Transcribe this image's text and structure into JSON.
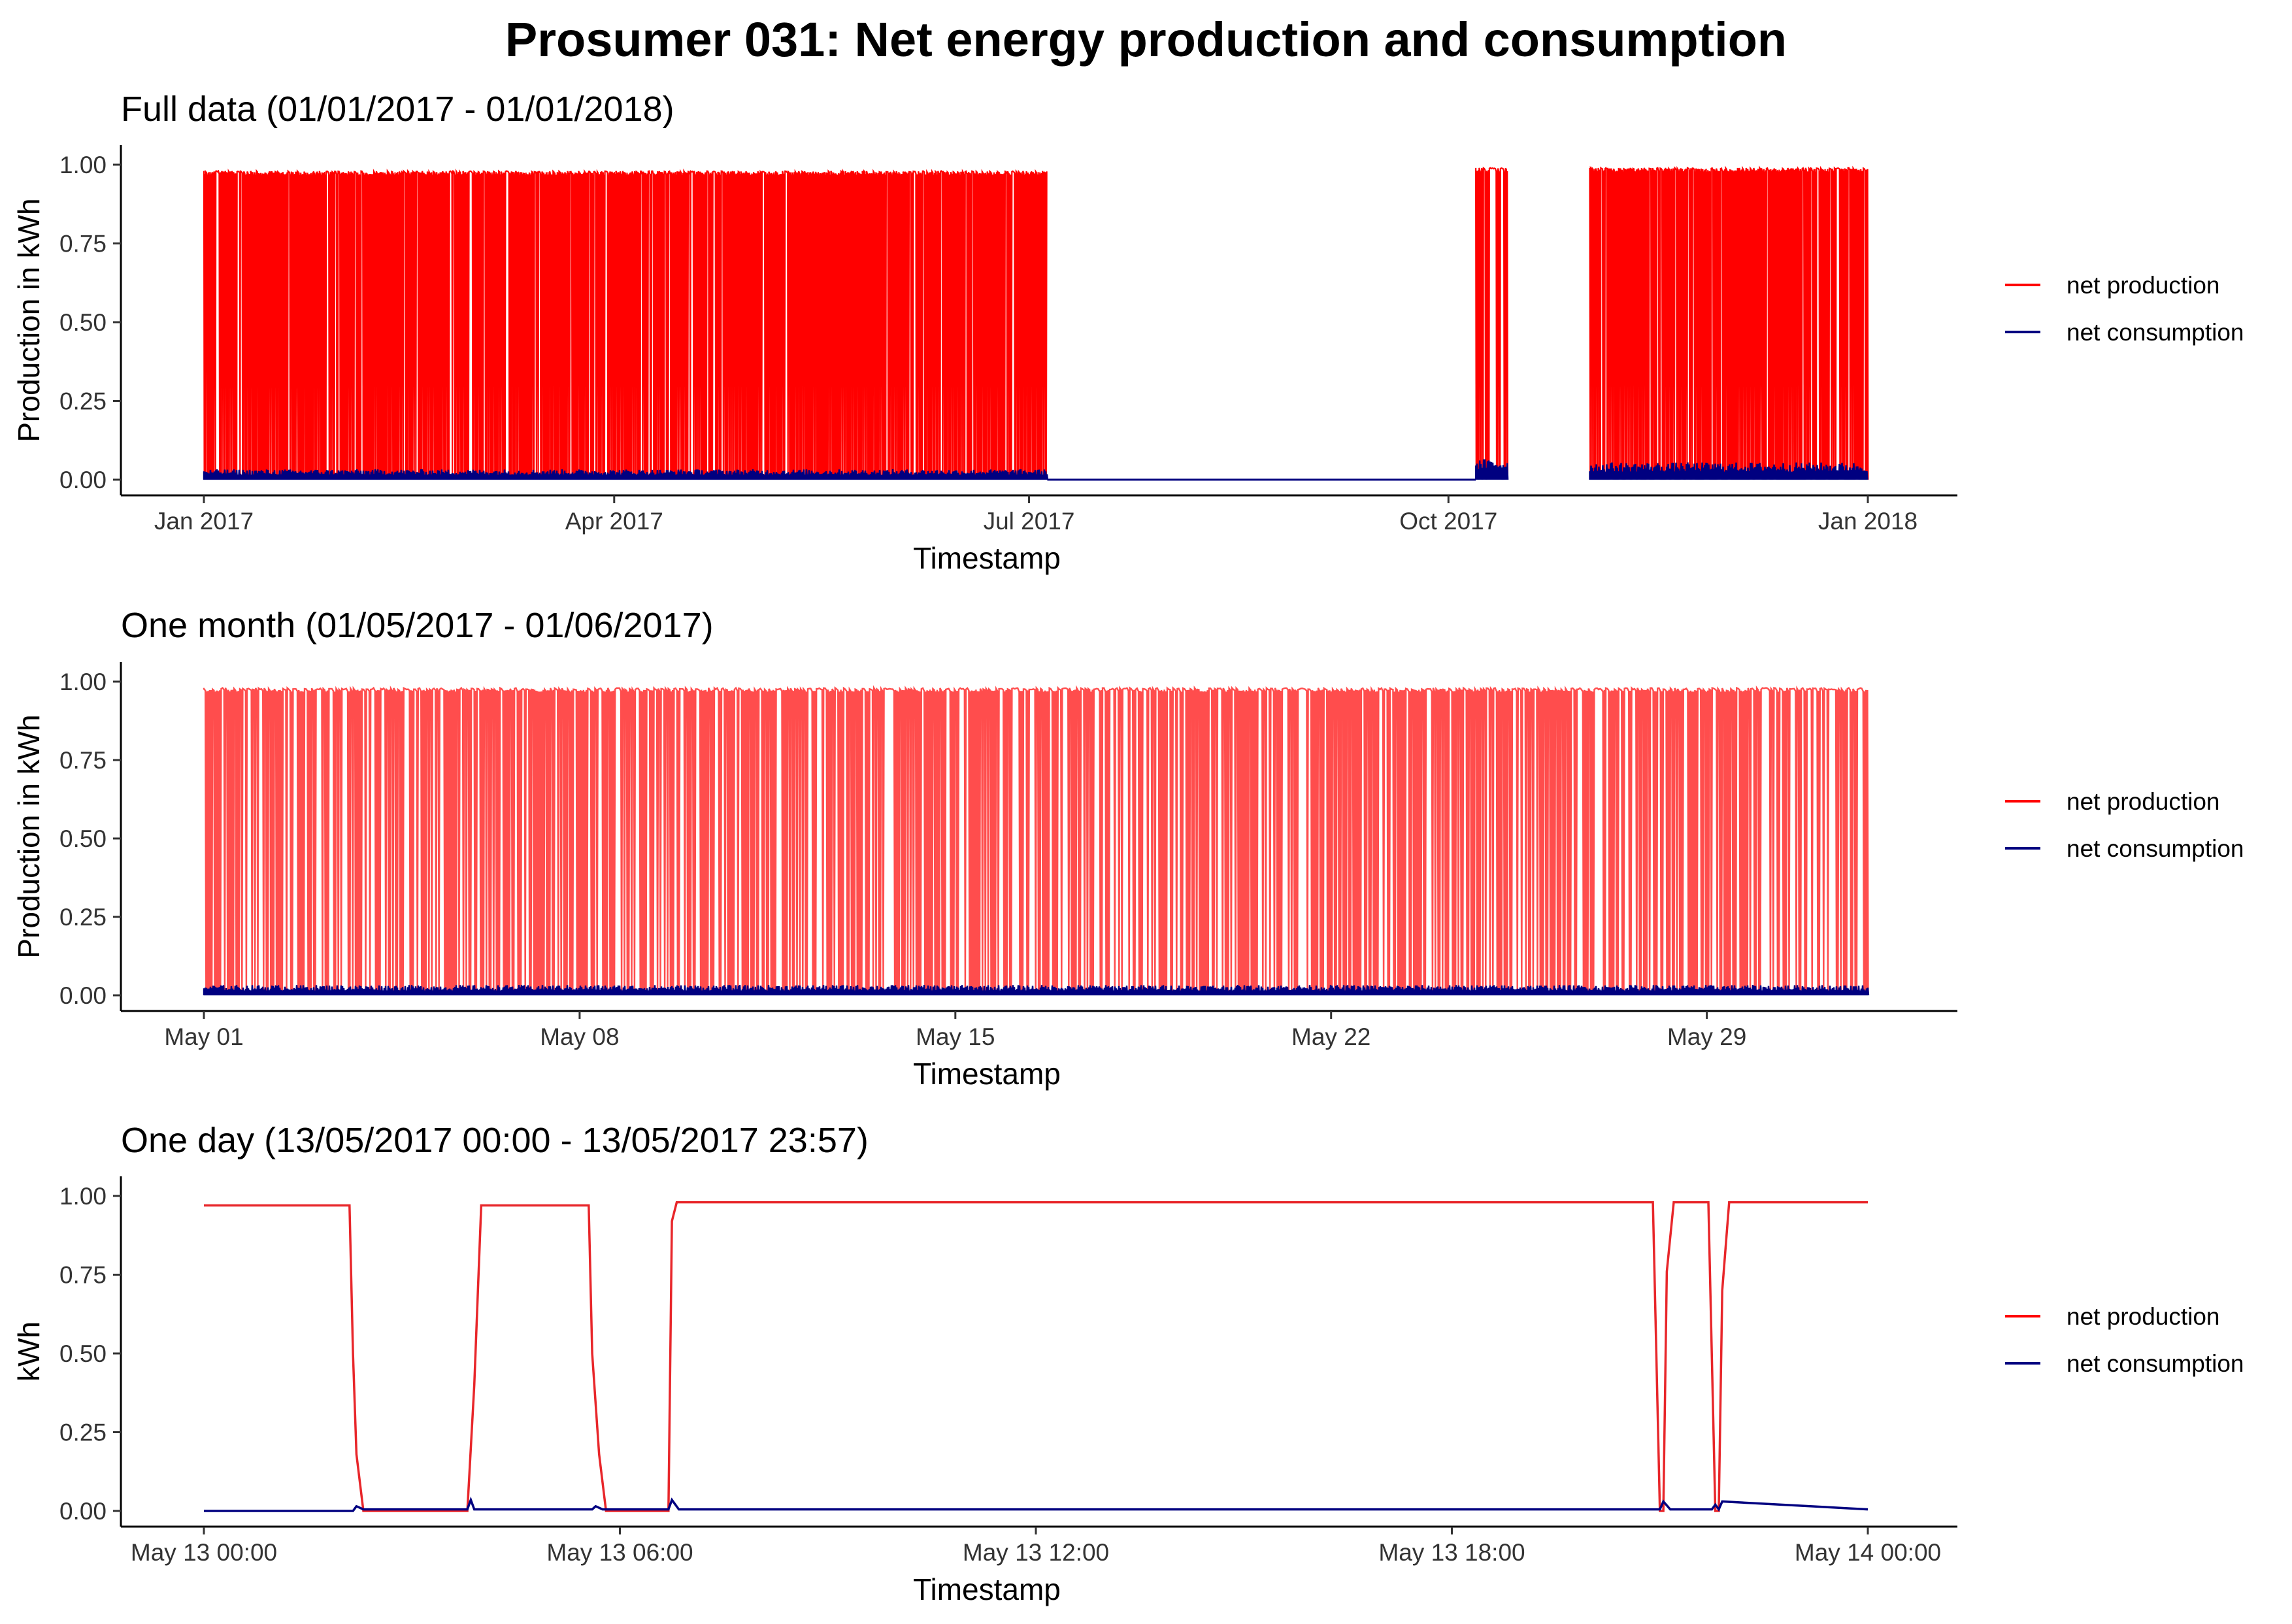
{
  "figure": {
    "title": "Prosumer 031: Net energy production and consumption"
  },
  "legend": [
    {
      "name": "net production",
      "color": "#ff0000"
    },
    {
      "name": "net consumption",
      "color": "#000080"
    }
  ],
  "chart_data": [
    {
      "type": "line",
      "title": "Full data (01/01/2017 - 01/01/2018)",
      "xlabel": "Timestamp",
      "ylabel": "Production in kWh",
      "xlim": [
        "2017-01-01",
        "2018-01-01"
      ],
      "ylim": [
        0,
        1
      ],
      "grid": false,
      "legend_position": "right",
      "x_ticks": [
        {
          "value": "2017-01-01",
          "label": "Jan 2017"
        },
        {
          "value": "2017-04-01",
          "label": "Apr 2017"
        },
        {
          "value": "2017-07-01",
          "label": "Jul 2017"
        },
        {
          "value": "2017-10-01",
          "label": "Oct 2017"
        },
        {
          "value": "2018-01-01",
          "label": "Jan 2018"
        }
      ],
      "y_ticks": [
        {
          "value": 0,
          "label": "0.00"
        },
        {
          "value": 0.25,
          "label": "0.25"
        },
        {
          "value": 0.5,
          "label": "0.50"
        },
        {
          "value": 0.75,
          "label": "0.75"
        },
        {
          "value": 1,
          "label": "1.00"
        }
      ],
      "series": [
        {
          "name": "net production",
          "color": "#ff0000",
          "note_visible_pattern": "dense alternating between ~0 and ~0.98 kWh",
          "active_periods": [
            {
              "start": "2017-01-01",
              "end": "2017-07-05",
              "high": 0.98,
              "low": 0
            },
            {
              "start": "2017-10-07",
              "end": "2017-10-14",
              "high": 0.99,
              "low": 0
            },
            {
              "start": "2017-11-01",
              "end": "2018-01-01",
              "high": 0.99,
              "low": 0
            }
          ],
          "gaps": [
            {
              "start": "2017-07-05",
              "end": "2017-10-07",
              "value": 0
            },
            {
              "start": "2017-10-14",
              "end": "2017-11-01",
              "value": null
            }
          ]
        },
        {
          "name": "net consumption",
          "color": "#000080",
          "active_periods": [
            {
              "start": "2017-01-01",
              "end": "2017-07-05",
              "high": 0.03,
              "low": 0
            },
            {
              "start": "2017-10-07",
              "end": "2017-10-14",
              "high": 0.06,
              "low": 0
            },
            {
              "start": "2017-11-01",
              "end": "2018-01-01",
              "high": 0.05,
              "low": 0
            }
          ]
        }
      ]
    },
    {
      "type": "line",
      "title": "One month (01/05/2017 - 01/06/2017)",
      "xlabel": "Timestamp",
      "ylabel": "Production in kWh",
      "xlim": [
        "2017-05-01",
        "2017-06-01"
      ],
      "ylim": [
        0,
        1
      ],
      "grid": false,
      "legend_position": "right",
      "x_ticks": [
        {
          "value": "2017-05-01",
          "label": "May 01"
        },
        {
          "value": "2017-05-08",
          "label": "May 08"
        },
        {
          "value": "2017-05-15",
          "label": "May 15"
        },
        {
          "value": "2017-05-22",
          "label": "May 22"
        },
        {
          "value": "2017-05-29",
          "label": "May 29"
        }
      ],
      "y_ticks": [
        {
          "value": 0,
          "label": "0.00"
        },
        {
          "value": 0.25,
          "label": "0.25"
        },
        {
          "value": 0.5,
          "label": "0.50"
        },
        {
          "value": 0.75,
          "label": "0.75"
        },
        {
          "value": 1,
          "label": "1.00"
        }
      ],
      "series": [
        {
          "name": "net production",
          "color": "#ff2020",
          "active_periods": [
            {
              "start": "2017-05-01",
              "end": "2017-06-01",
              "high": 0.98,
              "low": 0
            }
          ]
        },
        {
          "name": "net consumption",
          "color": "#000080",
          "active_periods": [
            {
              "start": "2017-05-01",
              "end": "2017-06-01",
              "high": 0.03,
              "low": 0
            }
          ]
        }
      ]
    },
    {
      "type": "line",
      "title": "One day (13/05/2017 00:00 - 13/05/2017 23:57)",
      "xlabel": "Timestamp",
      "ylabel": "kWh",
      "xlim": [
        "2017-05-13 00:00",
        "2017-05-14 00:00"
      ],
      "ylim": [
        0,
        1
      ],
      "grid": false,
      "legend_position": "right",
      "x_ticks": [
        {
          "value": 0,
          "label": "May 13 00:00"
        },
        {
          "value": 6,
          "label": "May 13 06:00"
        },
        {
          "value": 12,
          "label": "May 13 12:00"
        },
        {
          "value": 18,
          "label": "May 13 18:00"
        },
        {
          "value": 24,
          "label": "May 14 00:00"
        }
      ],
      "y_ticks": [
        {
          "value": 0,
          "label": "0.00"
        },
        {
          "value": 0.25,
          "label": "0.25"
        },
        {
          "value": 0.5,
          "label": "0.50"
        },
        {
          "value": 0.75,
          "label": "0.75"
        },
        {
          "value": 1,
          "label": "1.00"
        }
      ],
      "series": [
        {
          "name": "net production",
          "color": "#e8262a",
          "x_unit": "hours after 2017-05-13 00:00",
          "x": [
            0,
            2.1,
            2.15,
            2.2,
            2.3,
            3.8,
            3.9,
            4.0,
            5.55,
            5.6,
            5.7,
            5.8,
            6.7,
            6.75,
            6.82,
            20.9,
            21.0,
            21.05,
            21.1,
            21.2,
            21.7,
            21.8,
            21.85,
            21.9,
            22.0,
            24
          ],
          "y": [
            0.97,
            0.97,
            0.5,
            0.18,
            0.0,
            0.0,
            0.4,
            0.97,
            0.97,
            0.5,
            0.18,
            0.0,
            0.0,
            0.92,
            0.98,
            0.98,
            0.0,
            0.0,
            0.76,
            0.98,
            0.98,
            0.0,
            0.0,
            0.7,
            0.98,
            0.98
          ]
        },
        {
          "name": "net consumption",
          "color": "#000080",
          "x_unit": "hours after 2017-05-13 00:00",
          "x": [
            0,
            2.15,
            2.2,
            2.3,
            3.8,
            3.85,
            3.9,
            5.6,
            5.65,
            5.75,
            6.7,
            6.75,
            6.85,
            21.0,
            21.05,
            21.15,
            21.75,
            21.8,
            21.85,
            21.9,
            24
          ],
          "y": [
            0,
            0,
            0.015,
            0.005,
            0.005,
            0.035,
            0.005,
            0.005,
            0.015,
            0.005,
            0.005,
            0.035,
            0.005,
            0.005,
            0.03,
            0.005,
            0.005,
            0.02,
            0.005,
            0.03,
            0.005
          ]
        }
      ]
    }
  ]
}
